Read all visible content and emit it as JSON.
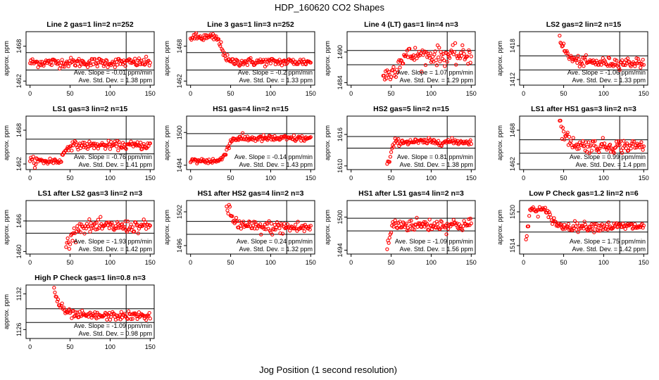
{
  "page_title": "HDP_160620  CO2 Shapes",
  "x_axis_label": "Jog Position (1 second resolution)",
  "y_axis_label": "approx. ppm",
  "slope_prefix": "Ave. Slope =",
  "slope_unit": "ppm/min",
  "std_prefix": "Ave. Std. Dev. =",
  "std_unit": "ppm",
  "colors": {
    "points": "#ff0000",
    "frame": "#000000",
    "background": "#ffffff"
  },
  "chart_data": [
    {
      "type": "scatter",
      "title": "Line 2 gas=1 lin=2 n=252",
      "xlim": [
        -5,
        155
      ],
      "xticks": [
        0,
        50,
        100,
        150
      ],
      "ylim": [
        1461.3,
        1470.5
      ],
      "yticks": [
        1462,
        1468
      ],
      "hlines": [
        1466.9,
        1463.9
      ],
      "vline": 120,
      "avg_slope": "-0.01",
      "avg_std_dev": "1.38",
      "shape": "flat",
      "x_start": 0,
      "x_end": 150,
      "level": 1465.2,
      "noise": 0.4
    },
    {
      "type": "scatter",
      "title": "Line 3 gas=1 lin=3 n=252",
      "xlim": [
        -5,
        155
      ],
      "xticks": [
        0,
        50,
        100,
        150
      ],
      "ylim": [
        1461.3,
        1470.5
      ],
      "yticks": [
        1462,
        1468
      ],
      "hlines": [
        1466.9,
        1463.9
      ],
      "vline": 120,
      "avg_slope": "-0.2",
      "avg_std_dev": "1.33",
      "shape": "step_down",
      "x_start": 0,
      "x_end": 150,
      "start_level": 1469.5,
      "level": 1465.3,
      "transition": [
        30,
        50
      ],
      "noise": 0.35
    },
    {
      "type": "scatter",
      "title": "Line 4 (LT) gas=1 lin=4 n=3",
      "xlim": [
        -5,
        155
      ],
      "xticks": [
        0,
        50,
        100,
        150
      ],
      "ylim": [
        1483.5,
        1494.0
      ],
      "yticks": [
        1484,
        1490
      ],
      "hlines": [
        1490.3,
        1487.5
      ],
      "vline": 120,
      "avg_slope": "1.07",
      "avg_std_dev": "1.29",
      "shape": "rise",
      "x_start": 40,
      "x_end": 150,
      "start_level": 1485.5,
      "level": 1489.3,
      "transition": [
        45,
        70
      ],
      "noise": 0.9
    },
    {
      "type": "scatter",
      "title": "LS2 gas=2 lin=2 n=15",
      "xlim": [
        -5,
        155
      ],
      "xticks": [
        0,
        50,
        100,
        150
      ],
      "ylim": [
        1411.0,
        1420.5
      ],
      "yticks": [
        1412,
        1418
      ],
      "hlines": [
        1416.2,
        1413.7
      ],
      "vline": 120,
      "avg_slope": "-1.06",
      "avg_std_dev": "1.33",
      "shape": "decay",
      "x_start": 45,
      "x_end": 150,
      "start_level": 1419.8,
      "level": 1415.0,
      "noise": 0.45
    },
    {
      "type": "scatter",
      "title": "LS1 gas=3 lin=2 n=15",
      "xlim": [
        -5,
        155
      ],
      "xticks": [
        0,
        50,
        100,
        150
      ],
      "ylim": [
        1461.0,
        1470.5
      ],
      "yticks": [
        1462,
        1468
      ],
      "hlines": [
        1466.4,
        1463.8
      ],
      "vline": 120,
      "avg_slope": "-0.76",
      "avg_std_dev": "1.41",
      "shape": "step_up",
      "x_start": 0,
      "x_end": 150,
      "start_level": 1462.5,
      "level": 1465.3,
      "transition": [
        35,
        50
      ],
      "noise": 0.35
    },
    {
      "type": "scatter",
      "title": "HS1 gas=4 lin=2 n=15",
      "xlim": [
        -5,
        155
      ],
      "xticks": [
        0,
        50,
        100,
        150
      ],
      "ylim": [
        1493.2,
        1503.0
      ],
      "yticks": [
        1494,
        1500
      ],
      "hlines": [
        1499.8,
        1497.5
      ],
      "vline": 120,
      "avg_slope": "-0.14",
      "avg_std_dev": "1.43",
      "shape": "step_up",
      "x_start": 0,
      "x_end": 150,
      "start_level": 1494.8,
      "level": 1498.9,
      "transition": [
        35,
        55
      ],
      "noise": 0.3
    },
    {
      "type": "scatter",
      "title": "HS2 gas=5 lin=2 n=15",
      "xlim": [
        -5,
        155
      ],
      "xticks": [
        0,
        50,
        100,
        150
      ],
      "ylim": [
        1609.3,
        1619.5
      ],
      "yticks": [
        1610,
        1616
      ],
      "hlines": [
        1615.6,
        1613.4
      ],
      "vline": 120,
      "avg_slope": "0.81",
      "avg_std_dev": "1.38",
      "shape": "rise",
      "x_start": 45,
      "x_end": 150,
      "start_level": 1610.5,
      "level": 1614.6,
      "transition": [
        46,
        55
      ],
      "noise": 0.3
    },
    {
      "type": "scatter",
      "title": "LS1 after HS1 gas=3 lin=2 n=3",
      "xlim": [
        -5,
        155
      ],
      "xticks": [
        0,
        50,
        100,
        150
      ],
      "ylim": [
        1461.0,
        1470.5
      ],
      "yticks": [
        1462,
        1468
      ],
      "hlines": [
        1466.3,
        1463.9
      ],
      "vline": 120,
      "avg_slope": "0.99",
      "avg_std_dev": "1.4",
      "shape": "decay",
      "x_start": 45,
      "x_end": 150,
      "start_level": 1469.5,
      "level": 1465.2,
      "noise": 0.6
    },
    {
      "type": "scatter",
      "title": "LS1 after LS2 gas=3 lin=2 n=3",
      "xlim": [
        -5,
        155
      ],
      "xticks": [
        0,
        50,
        100,
        150
      ],
      "ylim": [
        1459.5,
        1470.0
      ],
      "yticks": [
        1460,
        1466
      ],
      "hlines": [
        1466.0,
        1463.6
      ],
      "vline": 120,
      "avg_slope": "-1.93",
      "avg_std_dev": "1.42",
      "shape": "rise",
      "x_start": 45,
      "x_end": 150,
      "start_level": 1461.5,
      "level": 1464.9,
      "transition": [
        45,
        62
      ],
      "noise": 0.6
    },
    {
      "type": "scatter",
      "title": "HS1 after HS2 gas=4 lin=2 n=3",
      "xlim": [
        -5,
        155
      ],
      "xticks": [
        0,
        50,
        100,
        150
      ],
      "ylim": [
        1494.5,
        1504.0
      ],
      "yticks": [
        1496,
        1502
      ],
      "hlines": [
        1500.3,
        1498.0
      ],
      "vline": 120,
      "avg_slope": "0.24",
      "avg_std_dev": "1.32",
      "shape": "decay",
      "x_start": 45,
      "x_end": 150,
      "start_level": 1503.3,
      "level": 1499.2,
      "noise": 0.6
    },
    {
      "type": "scatter",
      "title": "HS1 after LS1 gas=4 lin=2 n=3",
      "xlim": [
        -5,
        155
      ],
      "xticks": [
        0,
        50,
        100,
        150
      ],
      "ylim": [
        1493.3,
        1503.0
      ],
      "yticks": [
        1494,
        1500
      ],
      "hlines": [
        1499.8,
        1497.5
      ],
      "vline": 120,
      "avg_slope": "-1.09",
      "avg_std_dev": "1.56",
      "shape": "rise",
      "x_start": 45,
      "x_end": 150,
      "start_level": 1494.5,
      "level": 1498.6,
      "transition": [
        45,
        52
      ],
      "noise": 0.6
    },
    {
      "type": "scatter",
      "title": "Low P Check gas=1.2 lin=2 n=6",
      "xlim": [
        -5,
        155
      ],
      "xticks": [
        0,
        50,
        100,
        150
      ],
      "ylim": [
        1512.5,
        1522.0
      ],
      "yticks": [
        1514,
        1520
      ],
      "hlines": [
        1518.2,
        1516.4
      ],
      "vline": 120,
      "avg_slope": "1.75",
      "avg_std_dev": "1.42",
      "shape": "hump",
      "x_start": 3,
      "x_end": 150,
      "start_level": 1515.0,
      "peak_level": 1520.3,
      "level": 1517.4,
      "noise": 0.4
    },
    {
      "type": "scatter",
      "title": "High P Check gas=1 lin=0.8 n=3",
      "xlim": [
        -5,
        155
      ],
      "xticks": [
        0,
        50,
        100,
        150
      ],
      "ylim": [
        1124.5,
        1133.5
      ],
      "yticks": [
        1126,
        1132
      ],
      "hlines": [
        1129.5,
        1127.2
      ],
      "vline": 120,
      "avg_slope": "-1.09",
      "avg_std_dev": "0.98",
      "shape": "decay",
      "x_start": 30,
      "x_end": 150,
      "start_level": 1132.8,
      "level": 1128.3,
      "noise": 0.35
    }
  ]
}
